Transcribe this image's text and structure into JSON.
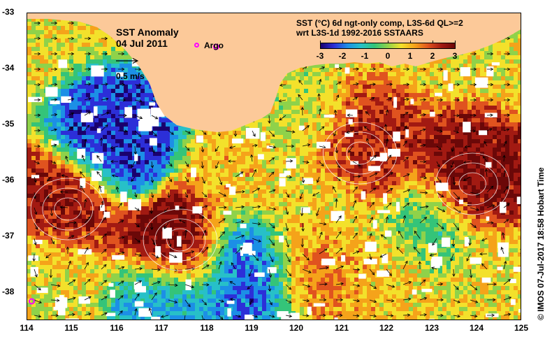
{
  "title": {
    "main": "SST Anomaly",
    "date": "04 Jul 2011"
  },
  "legend": {
    "argo_label": "Argo",
    "argo_color": "#ff00ff",
    "vector_label": "0.5 m/s"
  },
  "product": {
    "line1": "SST (°C) 6d ngt-only comp, L3S-6d QL>=2",
    "line2": "wrt L3S-1d 1992-2016 SSTAARS"
  },
  "colorbar": {
    "min": -3,
    "max": 3,
    "ticks": [
      "-3",
      "-2",
      "-1",
      "0",
      "1",
      "2",
      "3"
    ],
    "colors": [
      "#1a006e",
      "#2c2fd8",
      "#1c8fe6",
      "#27c0c8",
      "#34c479",
      "#8fd24a",
      "#f3e12b",
      "#f5a31a",
      "#e0531f",
      "#a21a12",
      "#6b0808"
    ]
  },
  "axes": {
    "lat_labels": [
      "-33",
      "-34",
      "-35",
      "-36",
      "-37",
      "-38"
    ],
    "lon_labels": [
      "114",
      "115",
      "116",
      "117",
      "118",
      "119",
      "120",
      "121",
      "122",
      "123",
      "124",
      "125"
    ],
    "lat_range": [
      -38.5,
      -33
    ],
    "lon_range": [
      114,
      125
    ]
  },
  "credit": "© IMOS 07-Jul-2017 18:58 Hobart Time",
  "land_color": "#fcc999",
  "argo_floats": [
    {
      "lon": 118.2,
      "lat": -33.6
    },
    {
      "lon": 114.1,
      "lat": -38.15
    }
  ],
  "eddies": [
    {
      "lon": 114.9,
      "lat": -36.5,
      "anomaly": 2.6
    },
    {
      "lon": 117.4,
      "lat": -37.05,
      "anomaly": 3.0
    },
    {
      "lon": 121.4,
      "lat": -35.5,
      "anomaly": 2.3
    },
    {
      "lon": 123.9,
      "lat": -36.05,
      "anomaly": 2.8
    },
    {
      "lon": 122.2,
      "lat": -37.5,
      "anomaly": 0.9
    },
    {
      "lon": 120.3,
      "lat": -37.2,
      "anomaly": 1.6
    },
    {
      "lon": 118.8,
      "lat": -37.4,
      "anomaly": -2.3
    },
    {
      "lon": 116.0,
      "lat": -35.3,
      "anomaly": -2.5
    },
    {
      "lon": 114.6,
      "lat": -37.6,
      "anomaly": 0.5
    },
    {
      "lon": 120.6,
      "lat": -36.5,
      "anomaly": 0.4
    },
    {
      "lon": 122.9,
      "lat": -36.9,
      "anomaly": -0.7
    },
    {
      "lon": 118.6,
      "lat": -35.9,
      "anomaly": 0.9
    },
    {
      "lon": 124.2,
      "lat": -37.6,
      "anomaly": 0.7
    },
    {
      "lon": 119.8,
      "lat": -34.9,
      "anomaly": 0.3
    },
    {
      "lon": 117.1,
      "lat": -38.2,
      "anomaly": -1.6
    }
  ]
}
